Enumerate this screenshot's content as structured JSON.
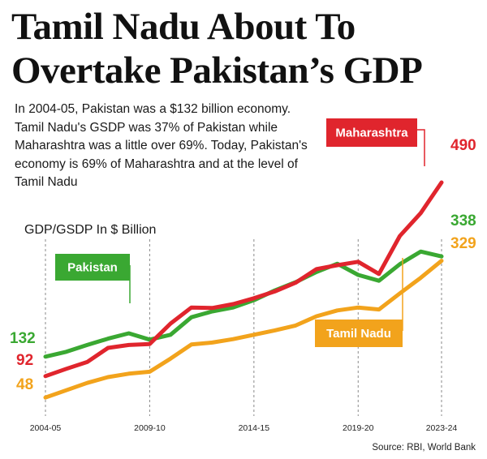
{
  "headline": {
    "line1": "Tamil Nadu About To",
    "line2": "Overtake Pakistan’s GDP"
  },
  "intro": "In 2004-05, Pakistan was a $132 billion economy. Tamil Nadu's GSDP was 37% of Pakistan while Maharashtra was a little over 69%. Today, Pakistan's economy is 69% of Maharashtra and at the level of Tamil Nadu",
  "source": "Source: RBI, World Bank",
  "chart_data": {
    "type": "line",
    "title": "Tamil Nadu About To Overtake Pakistan’s GDP",
    "ylabel": "GDP/GSDP In $ Billion",
    "xlabel": "",
    "grid": "vertical dashed lines at labeled ticks",
    "ylim": [
      0,
      520
    ],
    "x": [
      "2004-05",
      "2005-06",
      "2006-07",
      "2007-08",
      "2008-09",
      "2009-10",
      "2010-11",
      "2011-12",
      "2012-13",
      "2013-14",
      "2014-15",
      "2015-16",
      "2016-17",
      "2017-18",
      "2018-19",
      "2019-20",
      "2020-21",
      "2021-22",
      "2022-23",
      "2023-24"
    ],
    "x_tick_labels": [
      "2004-05",
      "2009-10",
      "2014-15",
      "2019-20",
      "2023-24"
    ],
    "x_tick_indices": [
      0,
      5,
      10,
      15,
      19
    ],
    "series": [
      {
        "name": "Maharashtra",
        "color": "#e0252d",
        "start_label": "92",
        "end_label": "490",
        "values": [
          92,
          107,
          121,
          150,
          156,
          158,
          200,
          233,
          232,
          240,
          252,
          266,
          284,
          312,
          320,
          327,
          302,
          380,
          427,
          490
        ]
      },
      {
        "name": "Pakistan",
        "color": "#3aa832",
        "start_label": "132",
        "end_label": "338",
        "values": [
          132,
          142,
          156,
          169,
          180,
          167,
          177,
          213,
          225,
          233,
          248,
          268,
          285,
          306,
          323,
          300,
          288,
          322,
          348,
          338
        ]
      },
      {
        "name": "Tamil Nadu",
        "color": "#f2a31c",
        "start_label": "48",
        "end_label": "329",
        "values": [
          48,
          63,
          78,
          90,
          97,
          101,
          128,
          157,
          161,
          168,
          177,
          186,
          196,
          215,
          227,
          233,
          229,
          262,
          294,
          329
        ]
      }
    ]
  }
}
